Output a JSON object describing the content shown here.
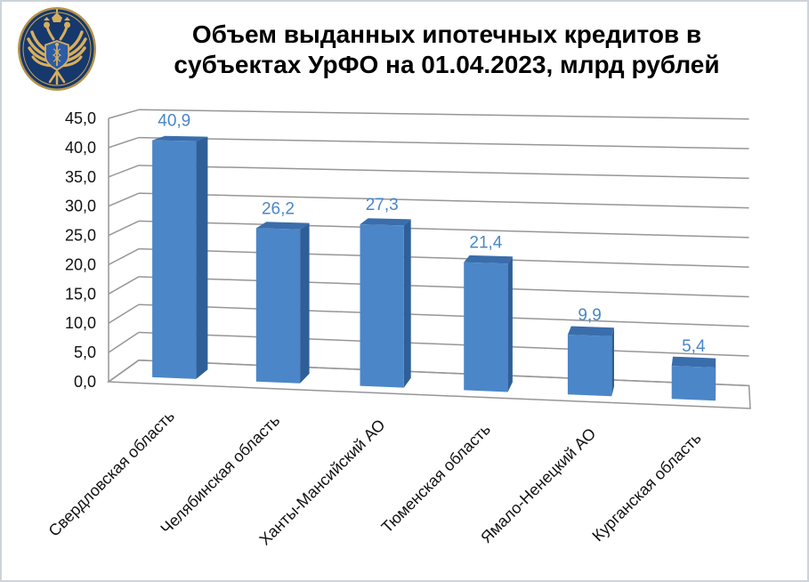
{
  "page": {
    "background": "#ffffff",
    "border_color": "#cdd3da"
  },
  "header": {
    "emblem_name": "russian-federal-treasury-emblem",
    "title_lines": [
      "Объем выданных ипотечных кредитов в",
      "субъектах УрФО на 01.04.2023, млрд рублей"
    ]
  },
  "chart_data": {
    "type": "bar",
    "style": "3d-column",
    "title": "Объем выданных ипотечных кредитов в субъектах УрФО на 01.04.2023, млрд рублей",
    "categories": [
      "Свердловская область",
      "Челябинская область",
      "Ханты-Мансийский АО",
      "Тюменская область",
      "Ямало-Ненецкий АО",
      "Курганская область"
    ],
    "values": [
      40.9,
      26.2,
      27.3,
      21.4,
      9.9,
      5.4
    ],
    "value_labels": [
      "40,9",
      "26,2",
      "27,3",
      "21,4",
      "9,9",
      "5,4"
    ],
    "ylim": [
      0,
      45
    ],
    "ytick_step": 5,
    "ytick_labels": [
      "0,0",
      "5,0",
      "10,0",
      "15,0",
      "20,0",
      "25,0",
      "30,0",
      "35,0",
      "40,0",
      "45,0"
    ],
    "grid": true,
    "legend_position": "none",
    "colors": {
      "bar_front": "#4b86c8",
      "bar_top": "#3a6dab",
      "bar_side": "#2f5f98",
      "value_label": "#4a86c8",
      "gridline": "#969696",
      "axis_line": "#969696",
      "tick_text": "#111111",
      "category_text": "#111111",
      "title_text": "#000000"
    }
  }
}
